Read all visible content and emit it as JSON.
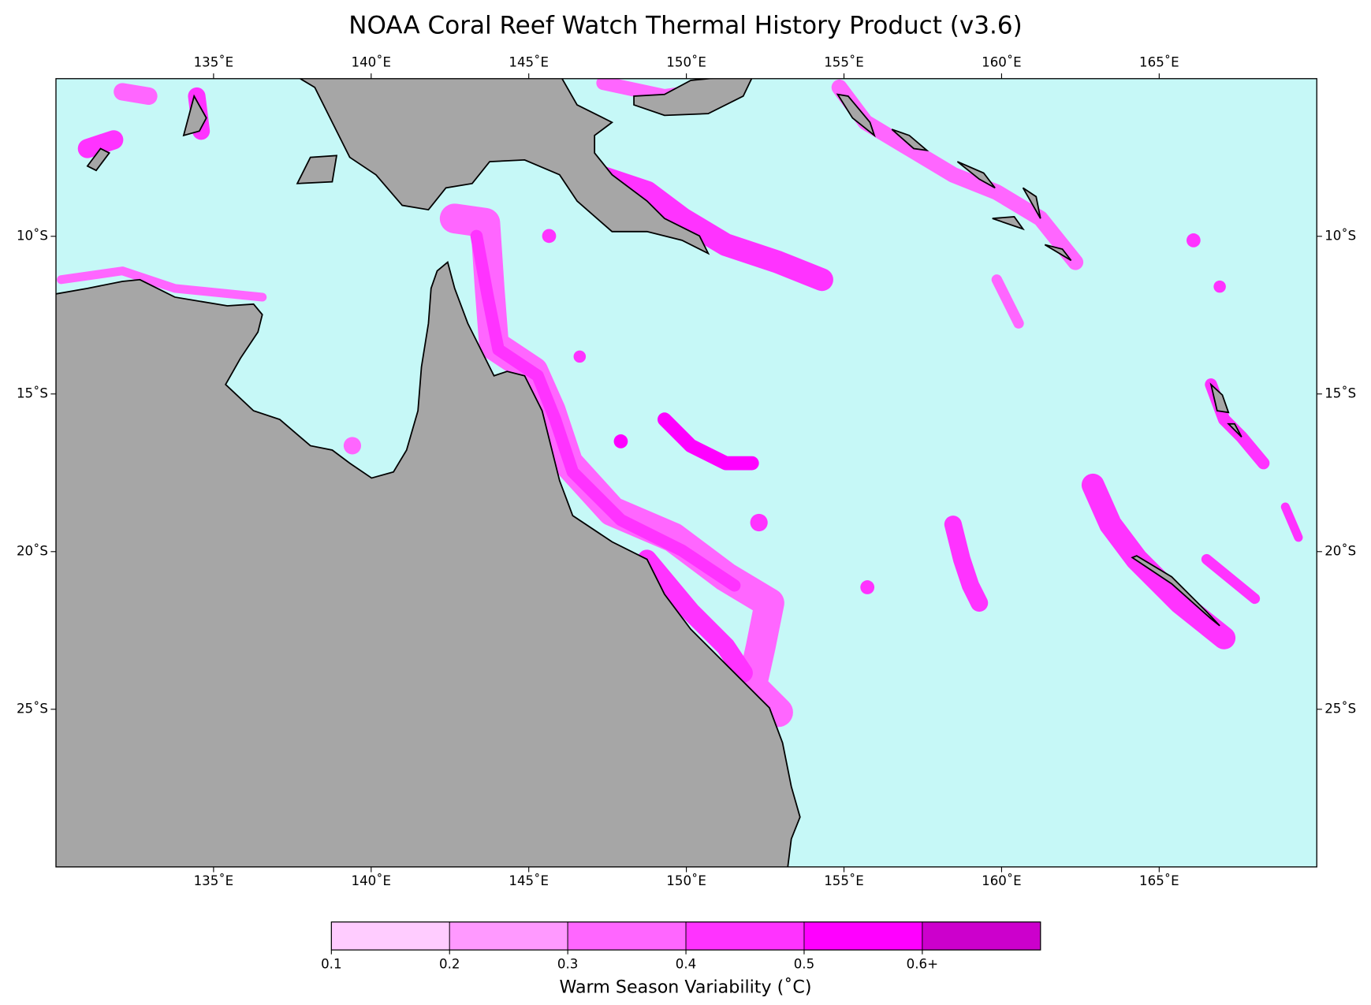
{
  "chart_data": {
    "type": "map",
    "title": "NOAA Coral Reef Watch Thermal History Product (v3.6)",
    "xlim": [
      130,
      170
    ],
    "ylim": [
      -30,
      -5
    ],
    "xticks": [
      {
        "value": 135,
        "label": "135˚E"
      },
      {
        "value": 140,
        "label": "140˚E"
      },
      {
        "value": 145,
        "label": "145˚E"
      },
      {
        "value": 150,
        "label": "150˚E"
      },
      {
        "value": 155,
        "label": "155˚E"
      },
      {
        "value": 160,
        "label": "160˚E"
      },
      {
        "value": 165,
        "label": "165˚E"
      }
    ],
    "yticks": [
      {
        "value": -10,
        "label": "10˚S"
      },
      {
        "value": -15,
        "label": "15˚S"
      },
      {
        "value": -20,
        "label": "20˚S"
      },
      {
        "value": -25,
        "label": "25˚S"
      }
    ],
    "land_color": "#a6a6a6",
    "ocean_color": "#c6f8f7",
    "colorbar": {
      "label": "Warm Season Variability (˚C)",
      "lim": [
        0.1,
        0.7
      ],
      "ticks": [
        0.1,
        0.2,
        0.3,
        0.4,
        0.5,
        {
          "value": 0.6,
          "label": "0.6+"
        }
      ],
      "colors": [
        "#ffccff",
        "#ff99ff",
        "#ff66ff",
        "#ff33ff",
        "#ff00ff",
        "#cc00cc"
      ]
    }
  }
}
